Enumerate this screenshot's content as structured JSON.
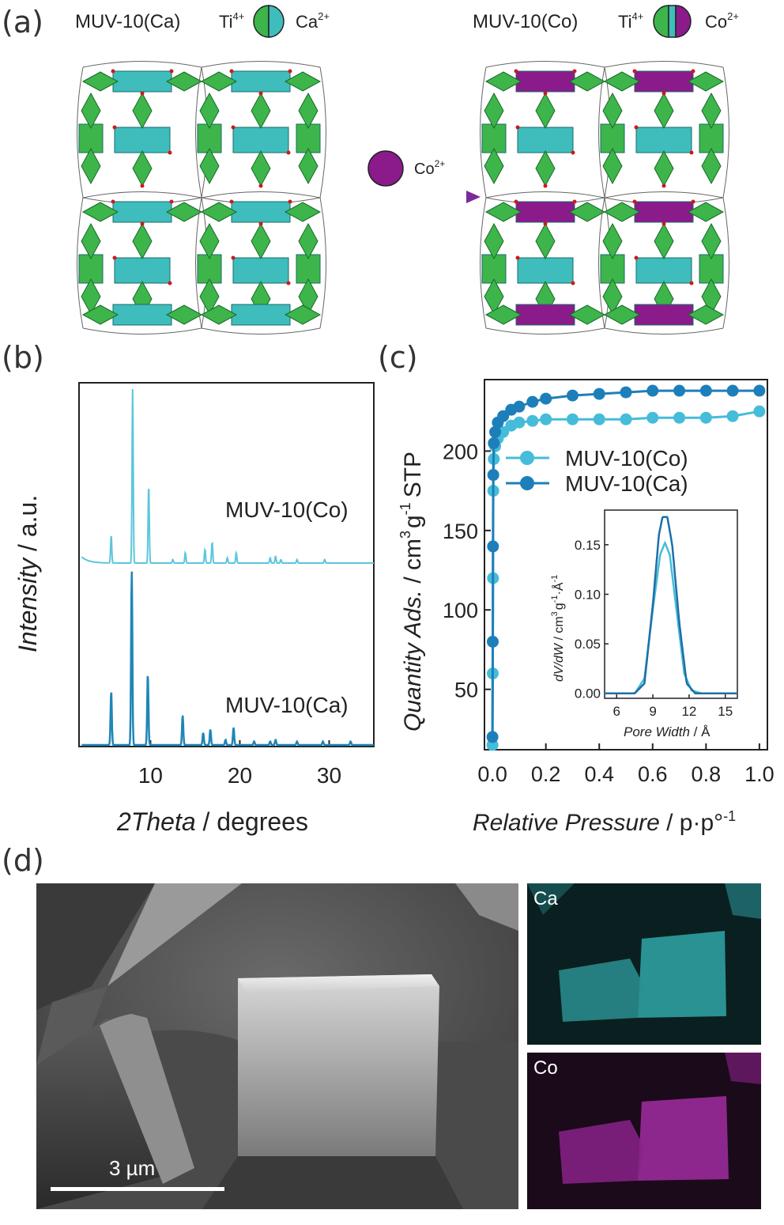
{
  "panels": {
    "a": "(a)",
    "b": "(b)",
    "c": "(c)",
    "d": "(d)"
  },
  "panel_a": {
    "left_title": "MUV-10(Ca)",
    "right_title": "MUV-10(Co)",
    "ti_label": "Ti",
    "ti_charge": "4+",
    "ca_label": "Ca",
    "ca_charge": "2+",
    "co_label": "Co",
    "co_charge": "2+",
    "arrow_label": "Co",
    "arrow_charge": "2+",
    "colors": {
      "ti": "#3db54a",
      "ca": "#3fbdbd",
      "co": "#8b1a8b",
      "oxygen": "#cc1a1a"
    }
  },
  "panel_b": {
    "ylabel_italic": "Intensity",
    "ylabel_unit": " / a.u.",
    "xlabel_italic": "2Theta",
    "xlabel_unit": " / degrees",
    "top_trace_label": "MUV-10(Co)",
    "bottom_trace_label": "MUV-10(Ca)"
  },
  "panel_c": {
    "ylabel_italic": "Quantity Ads.",
    "ylabel_unit": " / cm",
    "ylabel_sup1": "3",
    "ylabel_mid": "g",
    "ylabel_sup2": "-1",
    "ylabel_end": "STP",
    "xlabel_italic": "Relative Pressure",
    "xlabel_unit": " / p·p°",
    "xlabel_sup": "-1",
    "legend_co": "MUV-10(Co)",
    "legend_ca": "MUV-10(Ca)",
    "inset": {
      "ylabel_italic": "dV/dW",
      "ylabel_unit": " / cm",
      "ylabel_sup1": "3",
      "ylabel_mid": "g",
      "ylabel_sup2": "-1",
      "ylabel_end": "·Å",
      "ylabel_sup3": "-1",
      "xlabel_italic": "Pore Width",
      "xlabel_unit": " / Å"
    }
  },
  "panel_d": {
    "scale_bar": "3 µm",
    "map_ca": "Ca",
    "map_co": "Co"
  },
  "chart_data": [
    {
      "type": "line",
      "panel": "b",
      "xlabel": "2Theta / degrees",
      "ylabel": "Intensity / a.u.",
      "xlim": [
        2,
        35
      ],
      "xticks": [
        10,
        20,
        30
      ],
      "series": [
        {
          "name": "MUV-10(Co)",
          "color": "#5bc6dd",
          "peaks": [
            [
              5.6,
              0.16
            ],
            [
              8.0,
              1.0
            ],
            [
              9.8,
              0.45
            ],
            [
              12.5,
              0.02
            ],
            [
              13.9,
              0.06
            ],
            [
              16.1,
              0.08
            ],
            [
              16.9,
              0.12
            ],
            [
              18.6,
              0.03
            ],
            [
              19.6,
              0.06
            ],
            [
              23.4,
              0.03
            ],
            [
              24.0,
              0.04
            ],
            [
              24.6,
              0.02
            ],
            [
              26.4,
              0.02
            ],
            [
              29.5,
              0.02
            ]
          ]
        },
        {
          "name": "MUV-10(Ca)",
          "color": "#1f86b8",
          "peaks": [
            [
              5.6,
              0.31
            ],
            [
              7.9,
              1.0
            ],
            [
              9.7,
              0.41
            ],
            [
              13.6,
              0.17
            ],
            [
              15.9,
              0.07
            ],
            [
              16.7,
              0.09
            ],
            [
              18.4,
              0.03
            ],
            [
              19.3,
              0.1
            ],
            [
              21.6,
              0.02
            ],
            [
              23.4,
              0.02
            ],
            [
              24.0,
              0.03
            ],
            [
              26.4,
              0.02
            ],
            [
              29.3,
              0.02
            ],
            [
              32.4,
              0.02
            ]
          ]
        }
      ]
    },
    {
      "type": "line",
      "panel": "c",
      "xlabel": "Relative Pressure / p·p°-1",
      "ylabel": "Quantity Ads. / cm3 g-1 STP",
      "xlim": [
        -0.03,
        1.03
      ],
      "ylim": [
        12,
        245
      ],
      "xticks": [
        0.0,
        0.2,
        0.4,
        0.6,
        0.8,
        1.0
      ],
      "yticks": [
        50,
        100,
        150,
        200
      ],
      "series": [
        {
          "name": "MUV-10(Co)",
          "color": "#45bcd9",
          "x": [
            0.0,
            0.001,
            0.002,
            0.003,
            0.005,
            0.01,
            0.02,
            0.04,
            0.07,
            0.1,
            0.15,
            0.2,
            0.3,
            0.4,
            0.5,
            0.6,
            0.7,
            0.8,
            0.9,
            1.0
          ],
          "y": [
            15,
            60,
            120,
            175,
            195,
            203,
            208,
            212,
            216,
            218,
            219,
            220,
            220,
            220,
            220,
            221,
            221,
            221,
            222,
            225
          ]
        },
        {
          "name": "MUV-10(Ca)",
          "color": "#1d7fb9",
          "x": [
            0.0,
            0.001,
            0.002,
            0.003,
            0.005,
            0.01,
            0.02,
            0.04,
            0.07,
            0.1,
            0.15,
            0.2,
            0.3,
            0.4,
            0.5,
            0.6,
            0.7,
            0.8,
            0.9,
            1.0
          ],
          "y": [
            20,
            80,
            140,
            185,
            205,
            212,
            218,
            222,
            226,
            228,
            231,
            233,
            235,
            236,
            237,
            238,
            238,
            238,
            238,
            238
          ]
        }
      ]
    },
    {
      "type": "line",
      "panel": "c-inset",
      "xlabel": "Pore Width / Å",
      "ylabel": "dV/dW / cm3 g-1 ·Å-1",
      "xlim": [
        5,
        16
      ],
      "ylim": [
        -0.005,
        0.185
      ],
      "xticks": [
        6,
        9,
        12,
        15
      ],
      "yticks": [
        0.0,
        0.05,
        0.1,
        0.15
      ],
      "series": [
        {
          "name": "MUV-10(Co)",
          "color": "#45bcd9",
          "x": [
            5,
            7.5,
            8.3,
            9.0,
            9.6,
            10.0,
            10.4,
            11.0,
            11.6,
            12.2,
            13,
            16
          ],
          "y": [
            0.0,
            0.0,
            0.015,
            0.085,
            0.14,
            0.152,
            0.14,
            0.08,
            0.02,
            0.003,
            0.0,
            0.0
          ]
        },
        {
          "name": "MUV-10(Ca)",
          "color": "#1d6fa8",
          "x": [
            5,
            7.5,
            8.3,
            9.0,
            9.5,
            9.8,
            10.2,
            10.6,
            11.2,
            11.8,
            12.5,
            16
          ],
          "y": [
            0.0,
            0.0,
            0.01,
            0.09,
            0.16,
            0.178,
            0.178,
            0.15,
            0.07,
            0.01,
            0.0,
            0.0
          ]
        }
      ]
    }
  ]
}
